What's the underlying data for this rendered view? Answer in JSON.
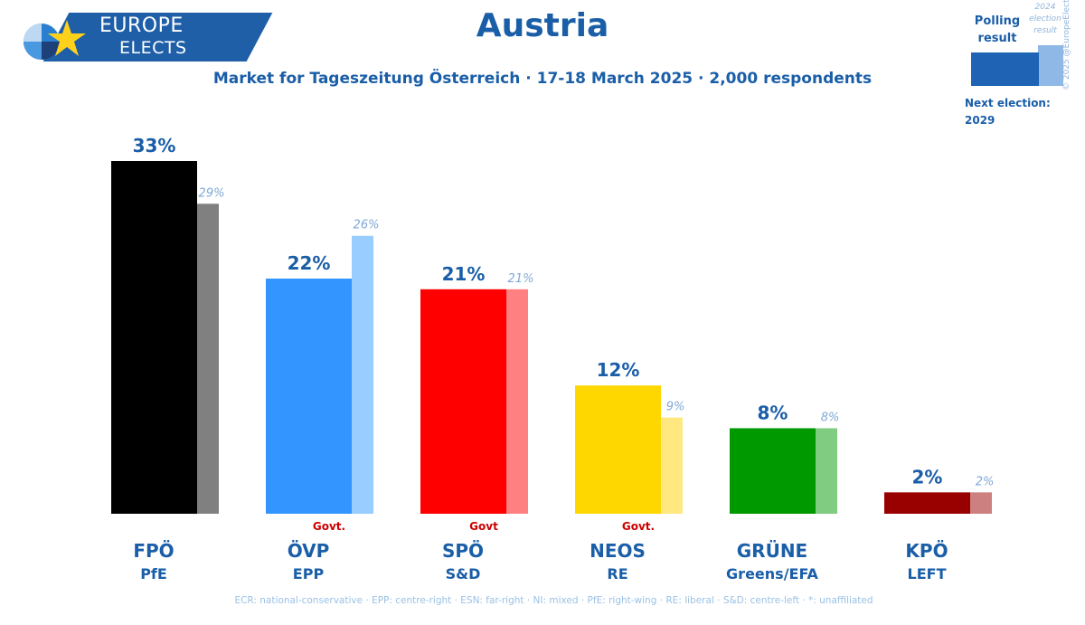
{
  "header": {
    "logo_line1": "EUROPE",
    "logo_line2": "ELECTS",
    "title": "Austria",
    "subtitle": "Market for Tageszeitung Österreich · 17-18 March 2025 · 2,000 respondents"
  },
  "legend": {
    "polling_line1": "Polling",
    "polling_line2": "result",
    "election_line1": "2024",
    "election_line2": "election",
    "election_line3": "result",
    "next_election_label": "Next election:",
    "next_election_year": "2029"
  },
  "copyright": "© 2025 @EuropeElects",
  "footer": "ECR: national-conservative · EPP: centre-right · ESN: far-right · NI: mixed · PfE: right-wing · RE: liberal · S&D: centre-left · *: unaffiliated",
  "chart_data": {
    "type": "bar",
    "title": "Austria",
    "categories": [
      "FPÖ",
      "ÖVP",
      "SPÖ",
      "NEOS",
      "GRÜNE",
      "KPÖ"
    ],
    "groups": [
      "PfE",
      "EPP",
      "S&D",
      "RE",
      "Greens/EFA",
      "LEFT"
    ],
    "govt_tags": [
      "",
      "Govt.",
      "Govt",
      "Govt.",
      "",
      ""
    ],
    "series": [
      {
        "name": "Polling result",
        "values": [
          33,
          22,
          21,
          12,
          8,
          2
        ],
        "labels": [
          "33%",
          "22%",
          "21%",
          "12%",
          "8%",
          "2%"
        ],
        "colors": [
          "#000000",
          "#3395ff",
          "#ff0000",
          "#ffd700",
          "#009900",
          "#990000"
        ]
      },
      {
        "name": "2024 election result",
        "values": [
          29,
          26,
          21,
          9,
          8,
          2
        ],
        "labels": [
          "29%",
          "26%",
          "21%",
          "9%",
          "8%",
          "2%"
        ],
        "colors": [
          "#808080",
          "#99ccff",
          "#ff8080",
          "#ffe880",
          "#80cc80",
          "#cc8080"
        ]
      }
    ],
    "ylim": [
      0,
      33
    ]
  }
}
